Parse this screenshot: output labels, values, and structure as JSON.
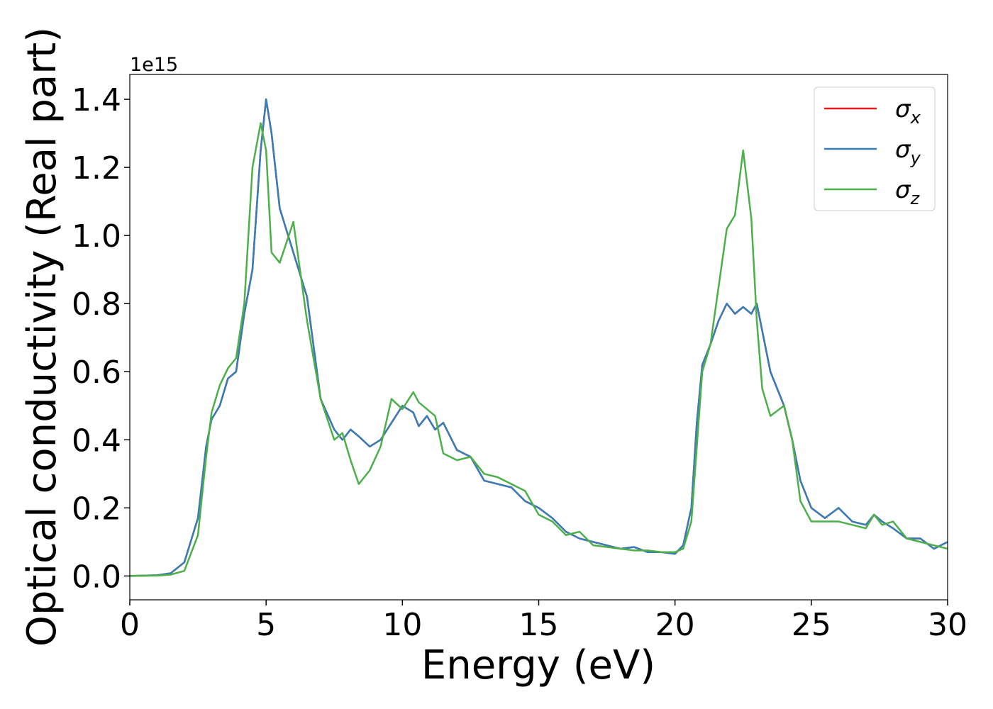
{
  "chart_data": {
    "type": "line",
    "x_label": "Energy (eV)",
    "y_label": "Optical conductivity (Real part)",
    "y_offset_text": "1e15",
    "x": [
      0,
      1,
      1.5,
      2,
      2.5,
      2.8,
      3,
      3.3,
      3.6,
      3.9,
      4.2,
      4.5,
      4.8,
      5.0,
      5.2,
      5.5,
      6.0,
      6.5,
      7.0,
      7.5,
      7.8,
      8.1,
      8.4,
      8.8,
      9.2,
      9.6,
      10.0,
      10.4,
      10.6,
      10.9,
      11.2,
      11.5,
      12,
      12.5,
      13,
      13.5,
      14,
      14.5,
      15,
      15.5,
      16,
      16.5,
      17,
      17.5,
      18,
      18.5,
      19,
      19.5,
      20,
      20.3,
      20.6,
      20.8,
      21,
      21.3,
      21.6,
      21.9,
      22.2,
      22.5,
      22.8,
      23.0,
      23.2,
      23.5,
      24,
      24.3,
      24.6,
      25,
      25.5,
      26,
      26.5,
      27,
      27.3,
      27.6,
      28,
      28.5,
      29,
      29.5,
      30
    ],
    "series": [
      {
        "name": "σx",
        "color": "#e41a1c",
        "values": [
          0,
          0.002,
          0.008,
          0.04,
          0.17,
          0.38,
          0.46,
          0.5,
          0.58,
          0.6,
          0.77,
          0.9,
          1.25,
          1.4,
          1.3,
          1.08,
          0.95,
          0.82,
          0.52,
          0.43,
          0.4,
          0.43,
          0.41,
          0.38,
          0.4,
          0.45,
          0.5,
          0.48,
          0.44,
          0.47,
          0.43,
          0.45,
          0.37,
          0.35,
          0.28,
          0.27,
          0.26,
          0.22,
          0.2,
          0.17,
          0.13,
          0.11,
          0.1,
          0.09,
          0.08,
          0.085,
          0.07,
          0.07,
          0.065,
          0.09,
          0.2,
          0.45,
          0.62,
          0.68,
          0.75,
          0.8,
          0.77,
          0.79,
          0.77,
          0.8,
          0.72,
          0.6,
          0.5,
          0.4,
          0.28,
          0.2,
          0.17,
          0.2,
          0.16,
          0.15,
          0.18,
          0.16,
          0.14,
          0.11,
          0.11,
          0.08,
          0.1
        ]
      },
      {
        "name": "σy",
        "color": "#377eb8",
        "values": [
          0,
          0.002,
          0.008,
          0.04,
          0.17,
          0.38,
          0.46,
          0.5,
          0.58,
          0.6,
          0.77,
          0.9,
          1.25,
          1.4,
          1.3,
          1.08,
          0.95,
          0.82,
          0.52,
          0.43,
          0.4,
          0.43,
          0.41,
          0.38,
          0.4,
          0.45,
          0.5,
          0.48,
          0.44,
          0.47,
          0.43,
          0.45,
          0.37,
          0.35,
          0.28,
          0.27,
          0.26,
          0.22,
          0.2,
          0.17,
          0.13,
          0.11,
          0.1,
          0.09,
          0.08,
          0.085,
          0.07,
          0.07,
          0.065,
          0.09,
          0.2,
          0.45,
          0.62,
          0.68,
          0.75,
          0.8,
          0.77,
          0.79,
          0.77,
          0.8,
          0.72,
          0.6,
          0.5,
          0.4,
          0.28,
          0.2,
          0.17,
          0.2,
          0.16,
          0.15,
          0.18,
          0.16,
          0.14,
          0.11,
          0.11,
          0.08,
          0.1
        ]
      },
      {
        "name": "σz",
        "color": "#4daf4a",
        "values": [
          0,
          0.001,
          0.004,
          0.015,
          0.12,
          0.35,
          0.48,
          0.56,
          0.61,
          0.64,
          0.8,
          1.2,
          1.33,
          1.25,
          0.95,
          0.92,
          1.04,
          0.75,
          0.52,
          0.4,
          0.42,
          0.34,
          0.27,
          0.31,
          0.38,
          0.52,
          0.49,
          0.54,
          0.51,
          0.49,
          0.47,
          0.36,
          0.34,
          0.35,
          0.3,
          0.29,
          0.27,
          0.25,
          0.18,
          0.16,
          0.12,
          0.13,
          0.09,
          0.085,
          0.08,
          0.075,
          0.075,
          0.07,
          0.07,
          0.08,
          0.16,
          0.38,
          0.6,
          0.68,
          0.85,
          1.02,
          1.06,
          1.25,
          1.05,
          0.75,
          0.55,
          0.47,
          0.5,
          0.4,
          0.22,
          0.16,
          0.16,
          0.16,
          0.15,
          0.14,
          0.18,
          0.15,
          0.16,
          0.11,
          0.1,
          0.09,
          0.08
        ]
      }
    ],
    "xlim": [
      0,
      30
    ],
    "xticks": [
      0,
      5,
      10,
      15,
      20,
      25,
      30
    ],
    "ylim": [
      -0.07,
      1.473
    ],
    "yticks": [
      {
        "value": 0,
        "label": "0.0"
      },
      0.2,
      0.4,
      0.6,
      0.8,
      {
        "value": 1,
        "label": "1.0"
      },
      1.2,
      1.4
    ],
    "legend": "upper right",
    "grid": false
  }
}
